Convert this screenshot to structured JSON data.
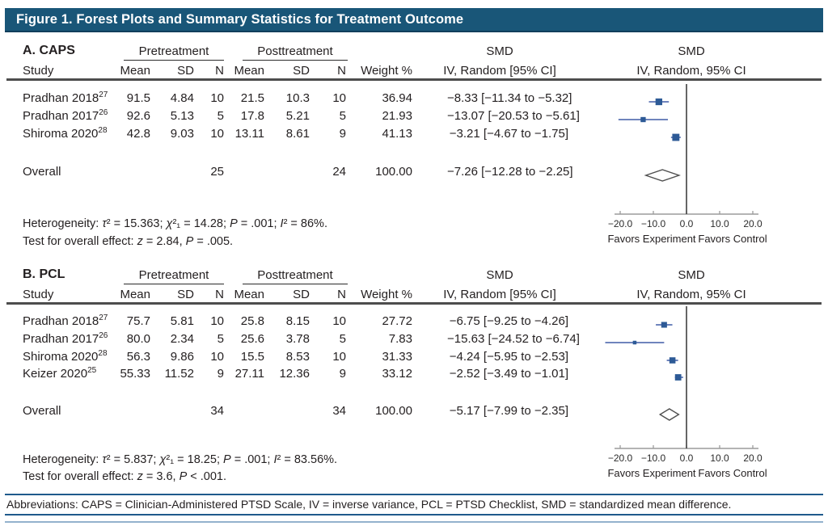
{
  "title": "Figure 1. Forest Plots and Summary Statistics for Treatment Outcome",
  "abbreviations": "Abbreviations: CAPS = Clinician-Administered PTSD Scale, IV = inverse variance, PCL = PTSD Checklist, SMD = standardized mean difference.",
  "colors": {
    "title_bar": "#195678",
    "accent_line": "#1f5a8c",
    "marker": "#2d5a96",
    "ci_line": "#6f84bd",
    "diamond_stroke": "#4f4f4f",
    "zero_line": "#3f3f3f",
    "axis": "#9c9c9c",
    "text": "#231f20"
  },
  "header": {
    "group_pre": "Pretreatment",
    "group_post": "Posttreatment",
    "cols": [
      "Study",
      "Mean",
      "SD",
      "N",
      "Mean",
      "SD",
      "N",
      "Weight %"
    ],
    "smd_col_line1": "SMD",
    "smd_col_line2": "IV, Random [95% CI]",
    "smd_plot_line1": "SMD",
    "smd_plot_line2": "IV, Random, 95% CI"
  },
  "axis": {
    "tick_labels": [
      "−20.0",
      "−10.0",
      "0.0",
      "10.0",
      "20.0"
    ],
    "tick_values": [
      -20,
      -10,
      0,
      10,
      20
    ],
    "xlim": [
      -26,
      26
    ],
    "favors_left": "Favors Experiment",
    "favors_right": "Favors Control"
  },
  "chart_data": [
    {
      "type": "forest",
      "panel_label": "A. CAPS",
      "studies": [
        {
          "study": "Pradhan 2018",
          "ref": "27",
          "pre_mean": "91.5",
          "pre_sd": "4.84",
          "pre_n": "10",
          "post_mean": "21.5",
          "post_sd": "10.3",
          "post_n": "10",
          "weight": "36.94",
          "est": -8.33,
          "lo": -11.34,
          "hi": -5.32,
          "smd_text": "−8.33 [−11.34 to −5.32]"
        },
        {
          "study": "Pradhan 2017",
          "ref": "26",
          "pre_mean": "92.6",
          "pre_sd": "5.13",
          "pre_n": "5",
          "post_mean": "17.8",
          "post_sd": "5.21",
          "post_n": "5",
          "weight": "21.93",
          "est": -13.07,
          "lo": -20.53,
          "hi": -5.61,
          "smd_text": "−13.07 [−20.53 to −5.61]"
        },
        {
          "study": "Shiroma 2020",
          "ref": "28",
          "pre_mean": "42.8",
          "pre_sd": "9.03",
          "pre_n": "10",
          "post_mean": "13.11",
          "post_sd": "8.61",
          "post_n": "9",
          "weight": "41.13",
          "est": -3.21,
          "lo": -4.67,
          "hi": -1.75,
          "smd_text": "−3.21 [−4.67 to −1.75]"
        }
      ],
      "overall": {
        "label": "Overall",
        "pre_n": "25",
        "post_n": "24",
        "weight": "100.00",
        "est": -7.26,
        "lo": -12.28,
        "hi": -2.25,
        "smd_text": "−7.26 [−12.28 to −2.25]"
      },
      "heterogeneity": "Heterogeneity: τ² = 15.363; χ²₁ = 14.28; P = .001; I² = 86%.",
      "overall_effect": "Test for overall effect: z = 2.84, P = .005."
    },
    {
      "type": "forest",
      "panel_label": "B. PCL",
      "studies": [
        {
          "study": "Pradhan 2018",
          "ref": "27",
          "pre_mean": "75.7",
          "pre_sd": "5.81",
          "pre_n": "10",
          "post_mean": "25.8",
          "post_sd": "8.15",
          "post_n": "10",
          "weight": "27.72",
          "est": -6.75,
          "lo": -9.25,
          "hi": -4.26,
          "smd_text": "−6.75 [−9.25 to −4.26]"
        },
        {
          "study": "Pradhan 2017",
          "ref": "26",
          "pre_mean": "80.0",
          "pre_sd": "2.34",
          "pre_n": "5",
          "post_mean": "25.6",
          "post_sd": "3.78",
          "post_n": "5",
          "weight": "7.83",
          "est": -15.63,
          "lo": -24.52,
          "hi": -6.74,
          "smd_text": "−15.63 [−24.52 to −6.74]"
        },
        {
          "study": "Shiroma 2020",
          "ref": "28",
          "pre_mean": "56.3",
          "pre_sd": "9.86",
          "pre_n": "10",
          "post_mean": "15.5",
          "post_sd": "8.53",
          "post_n": "10",
          "weight": "31.33",
          "est": -4.24,
          "lo": -5.95,
          "hi": -2.53,
          "smd_text": "−4.24 [−5.95 to −2.53]"
        },
        {
          "study": "Keizer 2020",
          "ref": "25",
          "pre_mean": "55.33",
          "pre_sd": "11.52",
          "pre_n": "9",
          "post_mean": "27.11",
          "post_sd": "12.36",
          "post_n": "9",
          "weight": "33.12",
          "est": -2.52,
          "lo": -3.49,
          "hi": -1.01,
          "smd_text": "−2.52 [−3.49 to −1.01]"
        }
      ],
      "overall": {
        "label": "Overall",
        "pre_n": "34",
        "post_n": "34",
        "weight": "100.00",
        "est": -5.17,
        "lo": -7.99,
        "hi": -2.35,
        "smd_text": "−5.17 [−7.99 to −2.35]"
      },
      "heterogeneity": "Heterogeneity: τ² = 5.837; χ²₁ = 18.25; P = .001; I² = 83.56%.",
      "overall_effect": "Test for overall effect: z = 3.6, P < .001."
    }
  ]
}
